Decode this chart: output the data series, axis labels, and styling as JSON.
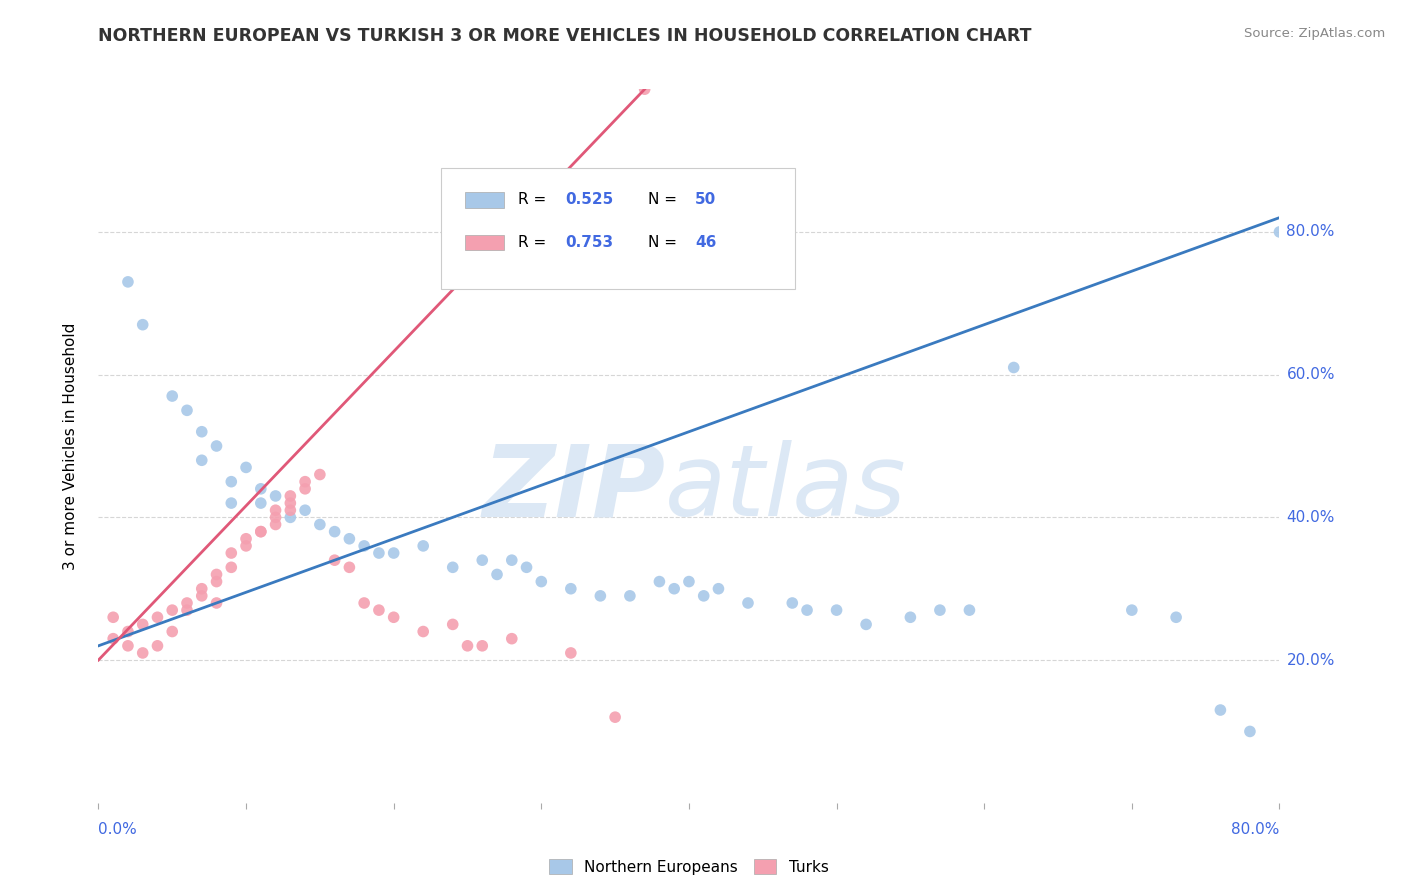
{
  "title": "NORTHERN EUROPEAN VS TURKISH 3 OR MORE VEHICLES IN HOUSEHOLD CORRELATION CHART",
  "source": "Source: ZipAtlas.com",
  "ylabel": "3 or more Vehicles in Household",
  "ytick_labels": [
    "20.0%",
    "40.0%",
    "60.0%",
    "80.0%"
  ],
  "ytick_vals": [
    20,
    40,
    60,
    80
  ],
  "xtick_left_label": "0.0%",
  "xtick_right_label": "80.0%",
  "legend_label_ne": "Northern Europeans",
  "legend_label_turk": "Turks",
  "blue_color": "#a8c8e8",
  "pink_color": "#f4a0b0",
  "blue_line_color": "#3a7abf",
  "pink_line_color": "#e05878",
  "r_value_color": "#4169E1",
  "blue_scatter": [
    [
      2,
      73
    ],
    [
      3,
      67
    ],
    [
      5,
      57
    ],
    [
      6,
      55
    ],
    [
      7,
      52
    ],
    [
      7,
      48
    ],
    [
      8,
      50
    ],
    [
      9,
      45
    ],
    [
      9,
      42
    ],
    [
      10,
      47
    ],
    [
      11,
      44
    ],
    [
      11,
      42
    ],
    [
      12,
      43
    ],
    [
      13,
      40
    ],
    [
      14,
      41
    ],
    [
      15,
      39
    ],
    [
      16,
      38
    ],
    [
      17,
      37
    ],
    [
      18,
      36
    ],
    [
      19,
      35
    ],
    [
      20,
      35
    ],
    [
      22,
      36
    ],
    [
      24,
      33
    ],
    [
      26,
      34
    ],
    [
      27,
      32
    ],
    [
      28,
      34
    ],
    [
      29,
      33
    ],
    [
      30,
      31
    ],
    [
      32,
      30
    ],
    [
      34,
      29
    ],
    [
      36,
      29
    ],
    [
      38,
      31
    ],
    [
      39,
      30
    ],
    [
      40,
      31
    ],
    [
      41,
      29
    ],
    [
      42,
      30
    ],
    [
      44,
      28
    ],
    [
      47,
      28
    ],
    [
      48,
      27
    ],
    [
      50,
      27
    ],
    [
      52,
      25
    ],
    [
      55,
      26
    ],
    [
      57,
      27
    ],
    [
      59,
      27
    ],
    [
      62,
      61
    ],
    [
      70,
      27
    ],
    [
      73,
      26
    ],
    [
      76,
      13
    ],
    [
      78,
      10
    ],
    [
      80,
      80
    ]
  ],
  "pink_scatter": [
    [
      1,
      26
    ],
    [
      1,
      23
    ],
    [
      2,
      24
    ],
    [
      2,
      22
    ],
    [
      3,
      21
    ],
    [
      3,
      25
    ],
    [
      4,
      22
    ],
    [
      4,
      26
    ],
    [
      5,
      24
    ],
    [
      5,
      27
    ],
    [
      6,
      27
    ],
    [
      6,
      28
    ],
    [
      7,
      29
    ],
    [
      7,
      30
    ],
    [
      8,
      31
    ],
    [
      8,
      32
    ],
    [
      8,
      28
    ],
    [
      9,
      33
    ],
    [
      9,
      35
    ],
    [
      10,
      36
    ],
    [
      10,
      37
    ],
    [
      11,
      38
    ],
    [
      11,
      38
    ],
    [
      12,
      40
    ],
    [
      12,
      39
    ],
    [
      12,
      41
    ],
    [
      13,
      41
    ],
    [
      13,
      42
    ],
    [
      13,
      43
    ],
    [
      14,
      44
    ],
    [
      14,
      45
    ],
    [
      15,
      46
    ],
    [
      16,
      34
    ],
    [
      17,
      33
    ],
    [
      18,
      28
    ],
    [
      19,
      27
    ],
    [
      20,
      26
    ],
    [
      22,
      24
    ],
    [
      24,
      25
    ],
    [
      25,
      22
    ],
    [
      26,
      22
    ],
    [
      28,
      23
    ],
    [
      32,
      21
    ],
    [
      35,
      12
    ],
    [
      37,
      100
    ]
  ],
  "xlim": [
    0,
    80
  ],
  "ylim": [
    0,
    100
  ],
  "blue_trendline_x": [
    0,
    80
  ],
  "blue_trendline_y": [
    22,
    82
  ],
  "pink_trendline_x": [
    0,
    37
  ],
  "pink_trendline_y": [
    20,
    100
  ]
}
